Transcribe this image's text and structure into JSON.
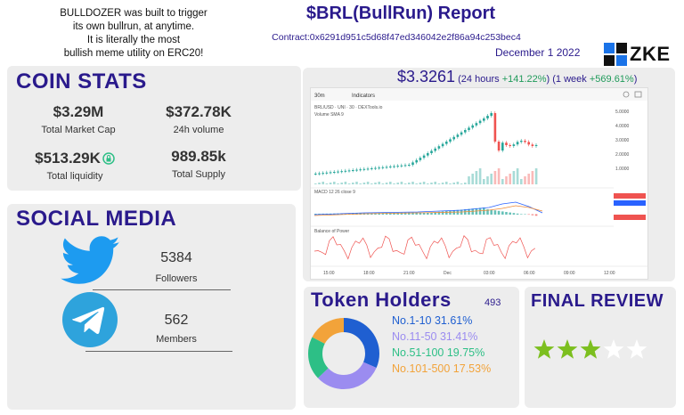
{
  "header": {
    "intro": [
      "BULLDOZER was built to trigger",
      "its own bullrun, at anytime.",
      "It is literally the most",
      "bullish meme utility on ERC20!"
    ],
    "title": "$BRL(BullRun)  Report",
    "contract": "Contract:0x6291d951c5d68f47ed346042e2f86a94c253bec4",
    "date": "December 1 2022",
    "exchange_logo": "ZKE"
  },
  "coin_stats": {
    "title": "COIN STATS",
    "market_cap_value": "$3.29M",
    "market_cap_label": "Total Market Cap",
    "volume_value": "$372.78K",
    "volume_label": "24h volume",
    "liquidity_value": "$513.29K",
    "liquidity_label": "Total liquidity",
    "supply_value": "989.85k",
    "supply_label": "Total Supply"
  },
  "price": {
    "value": "$3.3261",
    "day_label": "(24 hours",
    "day_change": "+141.22%",
    "week_label": ") (1 week",
    "week_change": "+569.61%",
    "close": ")"
  },
  "tradingview": {
    "interval": "30m",
    "indicators_label": "Indicators",
    "pair_label": "BRL/USD · UNI · 30 · DEXTools.io",
    "volume_label": "Volume SMA 9",
    "macd_label": "MACD 12 26 close 9",
    "bop_label": "Balance of Power",
    "time_ticks": [
      "15:00",
      "18:00",
      "21:00",
      "Dec",
      "03:00",
      "06:00",
      "09:00",
      "12:00"
    ],
    "price_ticks": [
      "5.0000",
      "4.0000",
      "3.0000",
      "2.0000",
      "1.0000"
    ],
    "colors": {
      "up": "#26a69a",
      "down": "#ef5350",
      "line": "#f08080",
      "signal": "#2962ff"
    }
  },
  "social": {
    "title": "SOCIAL MEDIA",
    "twitter_count": "5384",
    "twitter_label": "Followers",
    "telegram_count": "562",
    "telegram_label": "Members",
    "twitter_icon": "twitter-bird-icon",
    "telegram_icon": "telegram-plane-icon"
  },
  "holders": {
    "title": "Token Holders",
    "total": "493",
    "segments": [
      {
        "label": "No.1-10  31.61%",
        "value": 31.61,
        "color": "#1f5fd1"
      },
      {
        "label": "No.11-50 31.41%",
        "value": 31.41,
        "color": "#9b8cf0"
      },
      {
        "label": "No.51-100 19.75%",
        "value": 19.75,
        "color": "#2dbf86"
      },
      {
        "label": "No.101-500 17.53%",
        "value": 17.53,
        "color": "#f2a33a"
      }
    ]
  },
  "review": {
    "title": "FINAL REVIEW",
    "rating": 3,
    "max": 5,
    "star_color": "#7cbf1f",
    "empty_color": "#ffffff"
  }
}
